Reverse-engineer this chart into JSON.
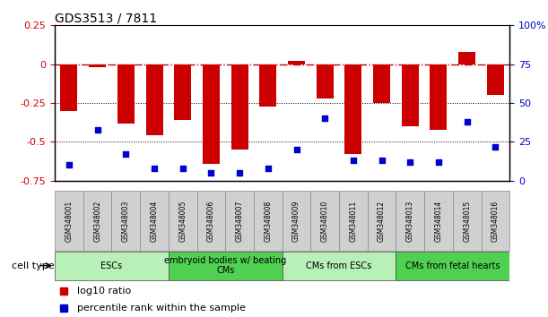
{
  "title": "GDS3513 / 7811",
  "samples": [
    "GSM348001",
    "GSM348002",
    "GSM348003",
    "GSM348004",
    "GSM348005",
    "GSM348006",
    "GSM348007",
    "GSM348008",
    "GSM348009",
    "GSM348010",
    "GSM348011",
    "GSM348012",
    "GSM348013",
    "GSM348014",
    "GSM348015",
    "GSM348016"
  ],
  "log10_ratio": [
    -0.3,
    -0.02,
    -0.38,
    -0.46,
    -0.36,
    -0.64,
    -0.55,
    -0.27,
    0.02,
    -0.22,
    -0.58,
    -0.25,
    -0.4,
    -0.42,
    0.08,
    -0.2
  ],
  "percentile_rank": [
    10,
    33,
    17,
    8,
    8,
    5,
    5,
    8,
    20,
    40,
    13,
    13,
    12,
    12,
    38,
    22
  ],
  "cell_type_groups": [
    {
      "label": "ESCs",
      "start": 0,
      "end": 3,
      "color": "#b8f0b8"
    },
    {
      "label": "embryoid bodies w/ beating\nCMs",
      "start": 4,
      "end": 7,
      "color": "#50d050"
    },
    {
      "label": "CMs from ESCs",
      "start": 8,
      "end": 11,
      "color": "#b8f0b8"
    },
    {
      "label": "CMs from fetal hearts",
      "start": 12,
      "end": 15,
      "color": "#50d050"
    }
  ],
  "bar_color": "#CC0000",
  "dot_color": "#0000CC",
  "left_ylim": [
    -0.75,
    0.25
  ],
  "right_ylim": [
    0,
    100
  ],
  "left_yticks": [
    0.25,
    0,
    -0.25,
    -0.5,
    -0.75
  ],
  "right_yticks": [
    100,
    75,
    50,
    25,
    0
  ],
  "legend_log10": "log10 ratio",
  "legend_pct": "percentile rank within the sample",
  "cell_type_label": "cell type"
}
